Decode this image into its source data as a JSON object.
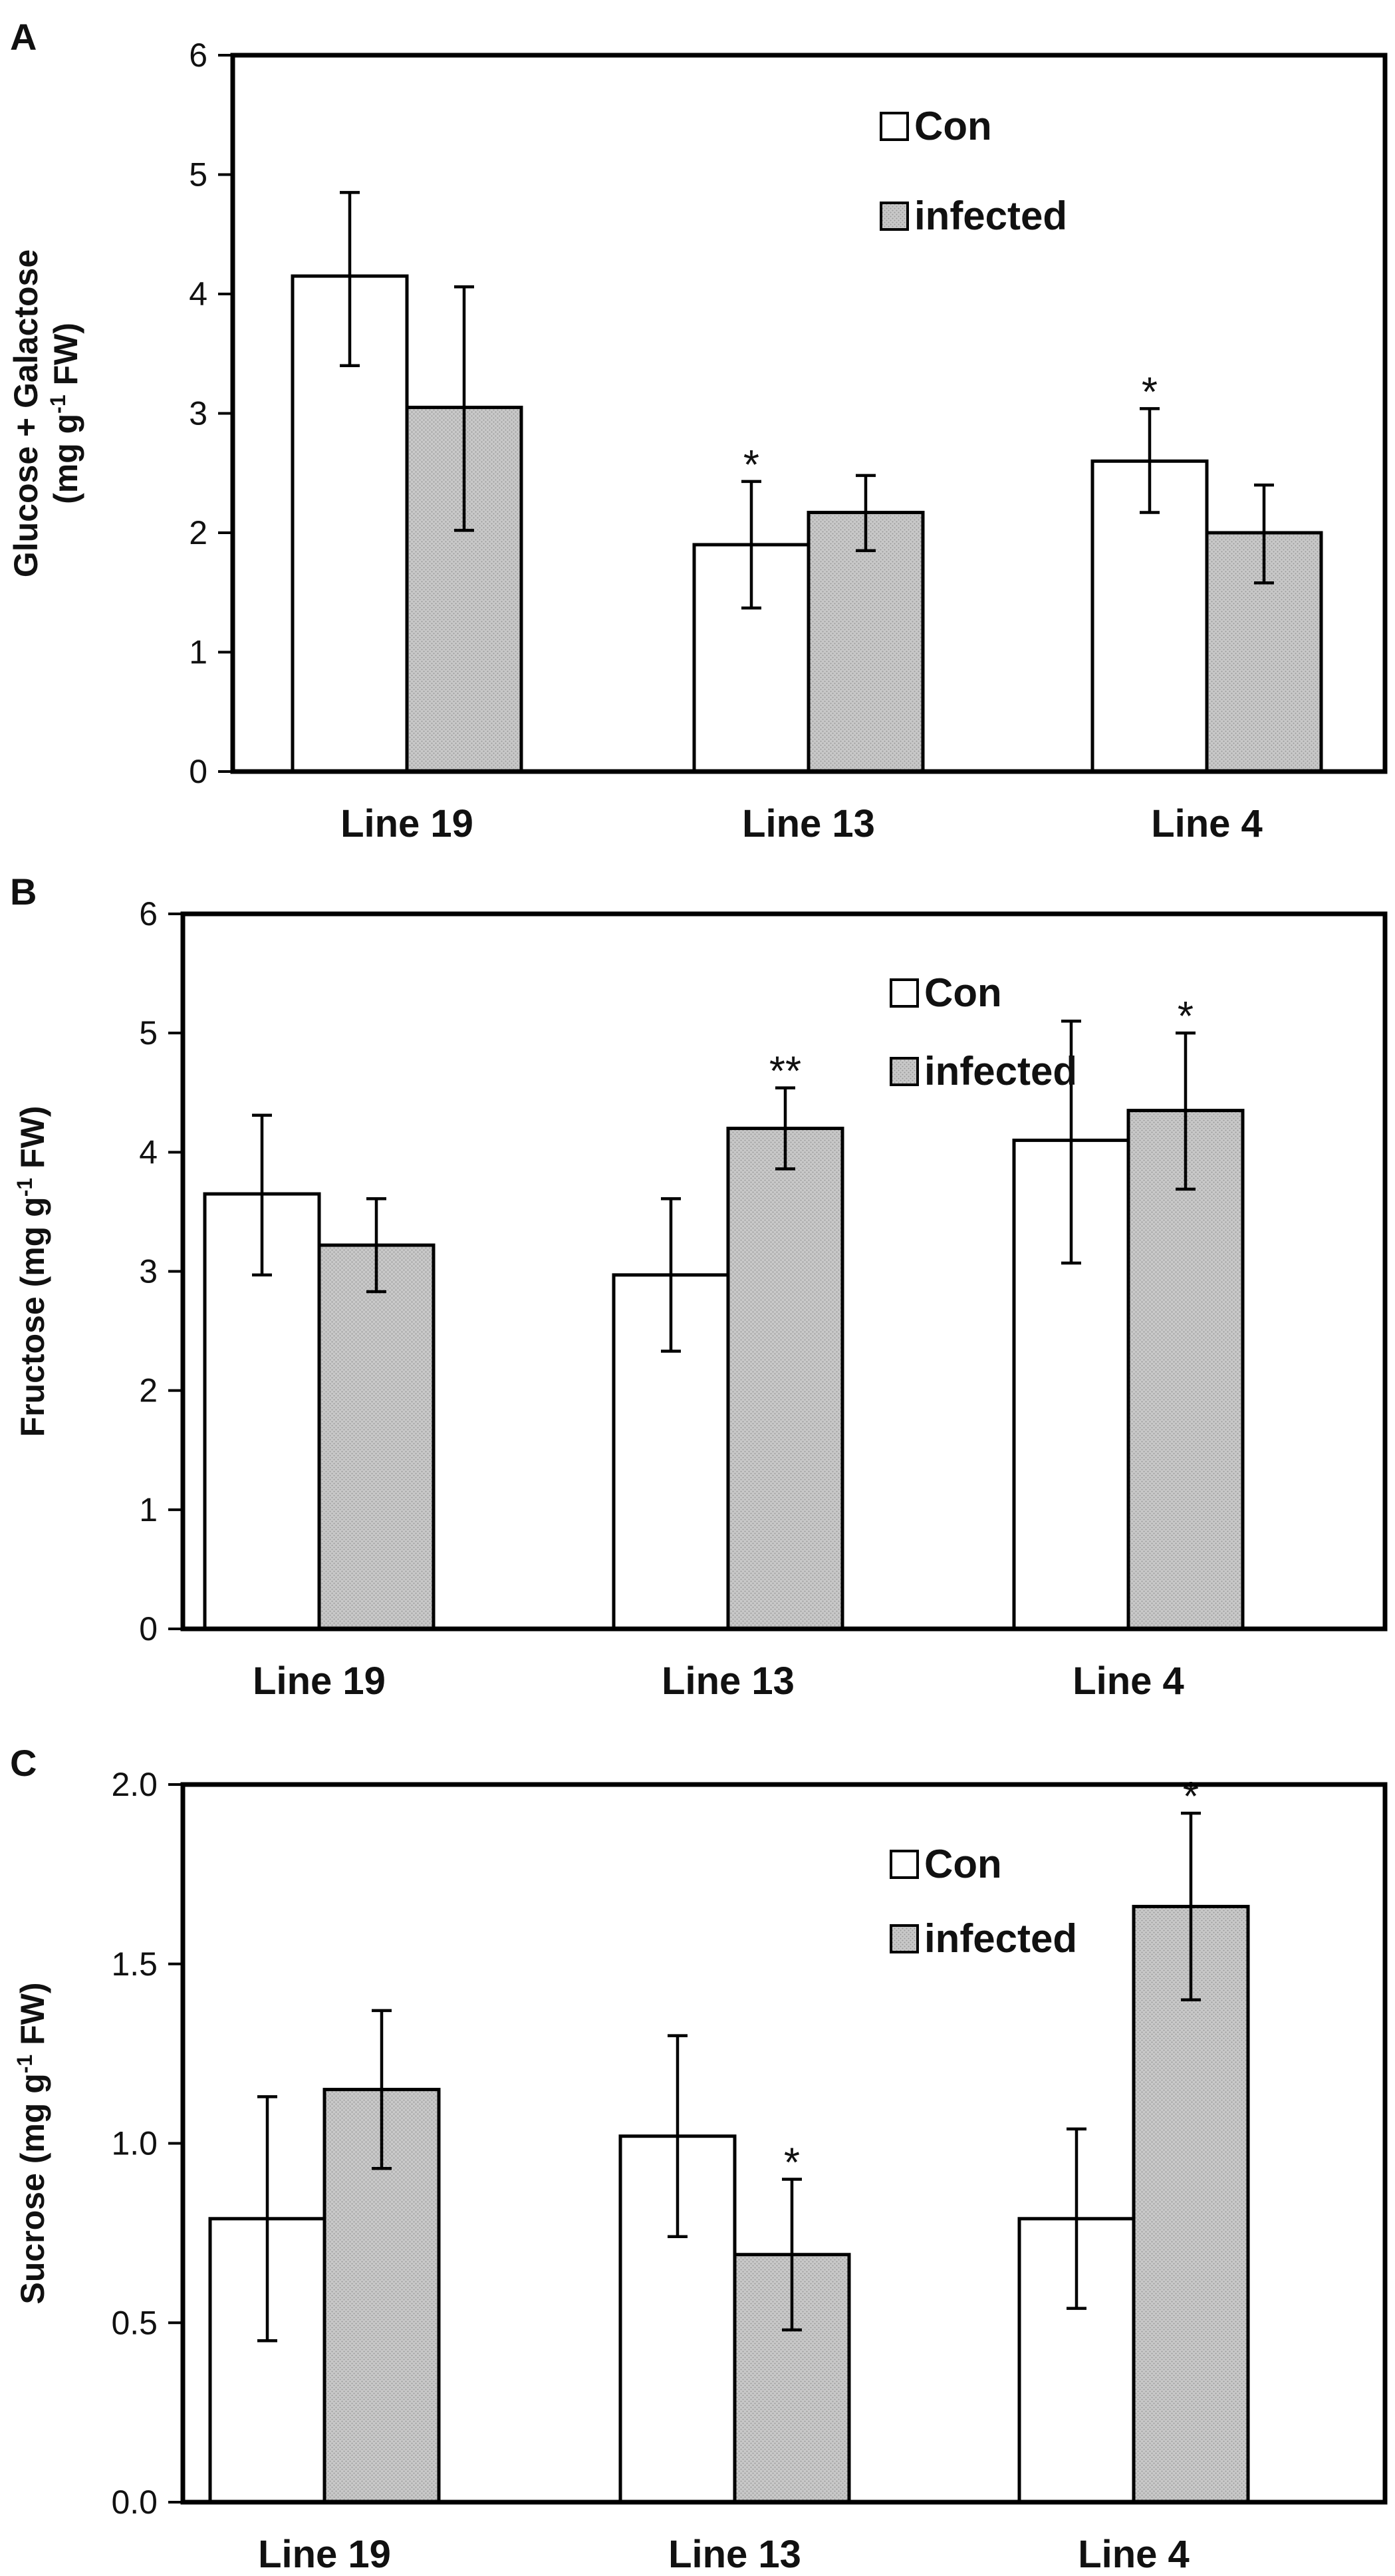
{
  "colors": {
    "con_fill": "#ffffff",
    "infected_fill": "#c8c8c8",
    "stroke": "#000000"
  },
  "chart_data": [
    {
      "type": "bar",
      "panel": "A",
      "categories": [
        "Line 19",
        "Line 13",
        "Line 4"
      ],
      "ylabel": "Glucose + Galactose (mg g-1 FW)",
      "ylabel_parts": {
        "line1": "Glucose + Galactose",
        "pre": "(mg g",
        "sup": "-1",
        "post": " FW)"
      },
      "ylim": [
        0,
        6
      ],
      "yticks": [
        "0",
        "1",
        "2",
        "3",
        "4",
        "5",
        "6"
      ],
      "legend_position": "top-right",
      "series": [
        {
          "name": "Con",
          "values": [
            4.15,
            1.9,
            2.6
          ],
          "err_low": [
            3.4,
            1.37,
            2.17
          ],
          "err_high": [
            4.85,
            2.43,
            3.04
          ],
          "sig": [
            "",
            "*",
            "*"
          ]
        },
        {
          "name": "infected",
          "values": [
            3.05,
            2.17,
            2.0
          ],
          "err_low": [
            2.02,
            1.85,
            1.58
          ],
          "err_high": [
            4.06,
            2.48,
            2.4
          ],
          "sig": [
            "",
            "",
            ""
          ]
        }
      ]
    },
    {
      "type": "bar",
      "panel": "B",
      "categories": [
        "Line 19",
        "Line 13",
        "Line 4"
      ],
      "ylabel": "Fructose (mg g-1 FW)",
      "ylabel_parts": {
        "line1": "",
        "pre": "Fructose (mg g",
        "sup": "-1",
        "post": " FW)"
      },
      "ylim": [
        0,
        6
      ],
      "yticks": [
        "0",
        "1",
        "2",
        "3",
        "4",
        "5",
        "6"
      ],
      "legend_position": "top-right",
      "series": [
        {
          "name": "Con",
          "values": [
            3.65,
            2.97,
            4.1
          ],
          "err_low": [
            2.97,
            2.33,
            3.07
          ],
          "err_high": [
            4.31,
            3.61,
            5.1
          ],
          "sig": [
            "",
            "",
            ""
          ]
        },
        {
          "name": "infected",
          "values": [
            3.22,
            4.2,
            4.35
          ],
          "err_low": [
            2.83,
            3.86,
            3.69
          ],
          "err_high": [
            3.61,
            4.54,
            5.0
          ],
          "sig": [
            "",
            "**",
            "*"
          ]
        }
      ]
    },
    {
      "type": "bar",
      "panel": "C",
      "categories": [
        "Line 19",
        "Line 13",
        "Line 4"
      ],
      "ylabel": "Sucrose (mg g-1 FW)",
      "ylabel_parts": {
        "line1": "",
        "pre": "Sucrose (mg g",
        "sup": "-1",
        "post": " FW)"
      },
      "ylim": [
        0,
        2.0
      ],
      "yticks": [
        "0.0",
        "0.5",
        "1.0",
        "1.5",
        "2.0"
      ],
      "legend_position": "top-right",
      "series": [
        {
          "name": "Con",
          "values": [
            0.79,
            1.02,
            0.79
          ],
          "err_low": [
            0.45,
            0.74,
            0.54
          ],
          "err_high": [
            1.13,
            1.3,
            1.04
          ],
          "sig": [
            "",
            "",
            ""
          ]
        },
        {
          "name": "infected",
          "values": [
            1.15,
            0.69,
            1.66
          ],
          "err_low": [
            0.93,
            0.48,
            1.4
          ],
          "err_high": [
            1.37,
            0.9,
            1.92
          ],
          "sig": [
            "",
            "*",
            "*"
          ]
        }
      ]
    }
  ]
}
